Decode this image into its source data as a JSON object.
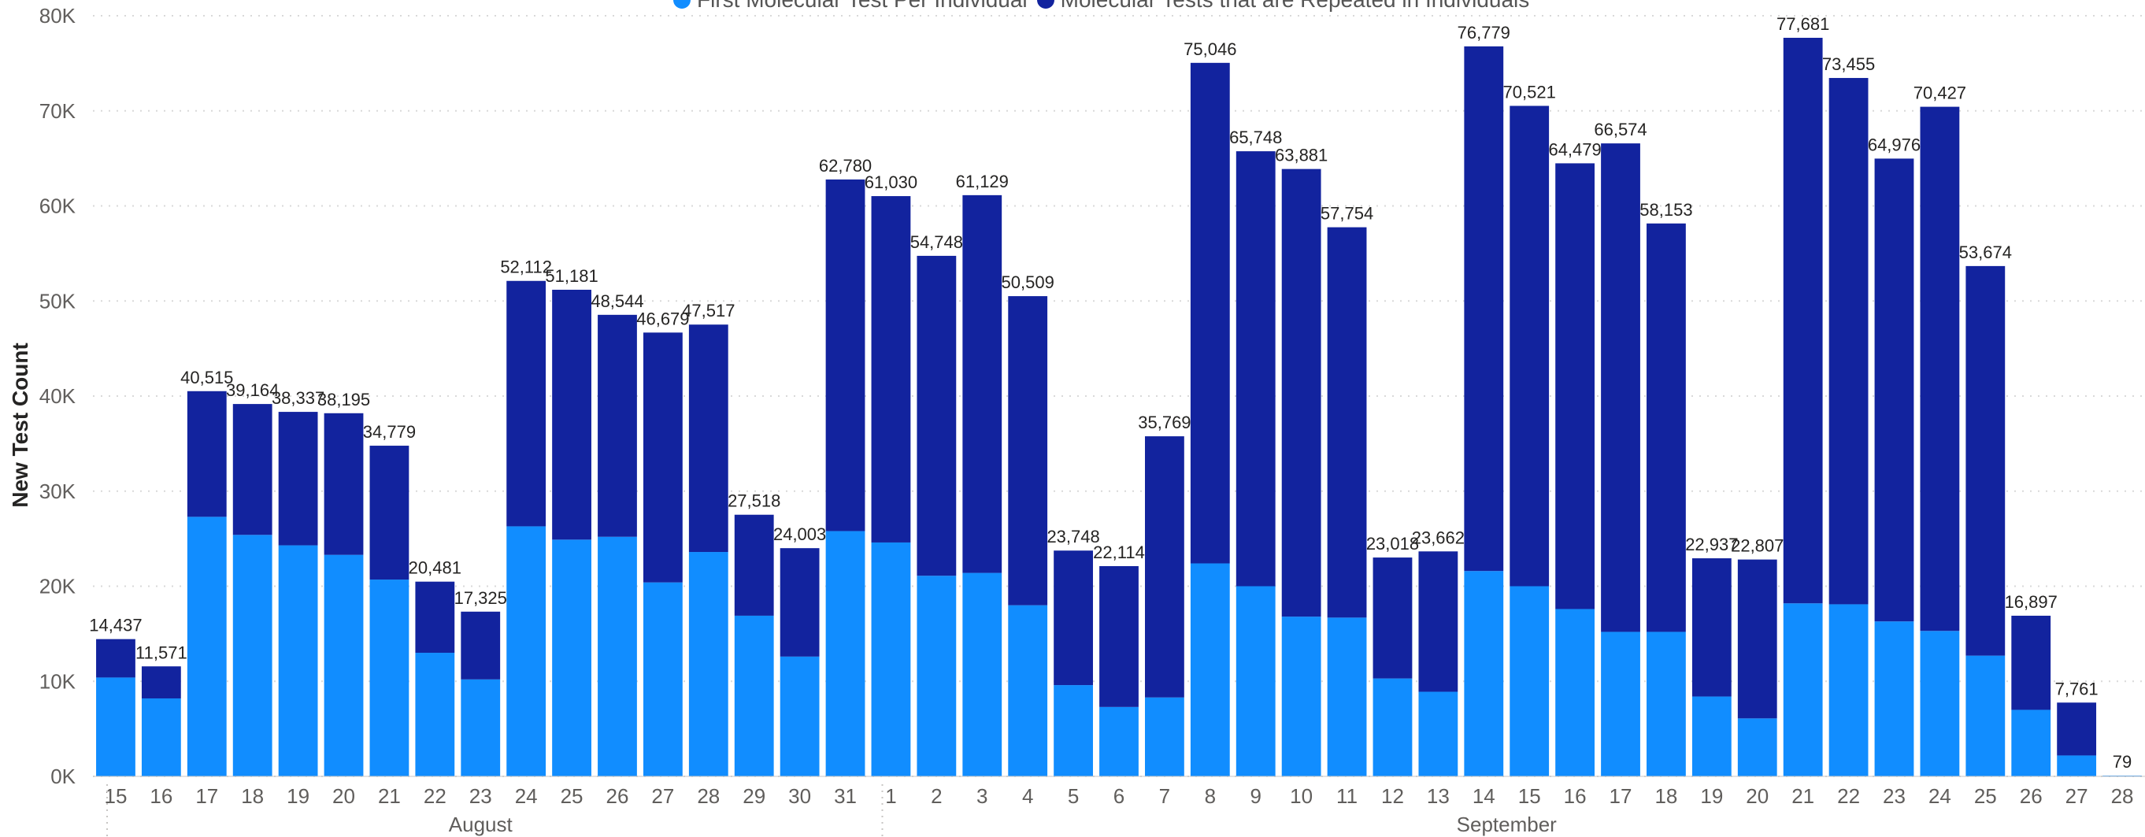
{
  "chart_data": {
    "type": "bar",
    "stacked": true,
    "ylabel": "New Test Count",
    "xlabel": "",
    "ylim": [
      0,
      80000
    ],
    "yticks": [
      "0K",
      "10K",
      "20K",
      "30K",
      "40K",
      "50K",
      "60K",
      "70K",
      "80K"
    ],
    "grid": true,
    "legend_position": "top",
    "colors": {
      "first": "#118DFF",
      "repeated": "#12239E"
    },
    "month_groups": [
      {
        "label": "August",
        "count": 17
      },
      {
        "label": "September",
        "count": 28
      }
    ],
    "categories": [
      "15",
      "16",
      "17",
      "18",
      "19",
      "20",
      "21",
      "22",
      "23",
      "24",
      "25",
      "26",
      "27",
      "28",
      "29",
      "30",
      "31",
      "1",
      "2",
      "3",
      "4",
      "5",
      "6",
      "7",
      "8",
      "9",
      "10",
      "11",
      "12",
      "13",
      "14",
      "15",
      "16",
      "17",
      "18",
      "19",
      "20",
      "21",
      "22",
      "23",
      "24",
      "25",
      "26",
      "27",
      "28"
    ],
    "series": [
      {
        "name": "First Molecular Test Per Individual",
        "values": [
          10400,
          8200,
          27300,
          25400,
          24300,
          23300,
          20700,
          13000,
          10200,
          26300,
          24900,
          25200,
          20400,
          23600,
          16900,
          12600,
          25800,
          24600,
          21100,
          21400,
          18000,
          9600,
          7300,
          8300,
          22400,
          20000,
          16800,
          16700,
          10300,
          8900,
          21600,
          20000,
          17600,
          15200,
          15200,
          8400,
          6100,
          18200,
          18100,
          16300,
          15300,
          12700,
          7000,
          2200,
          79
        ]
      },
      {
        "name": "Molecular Tests that are Repeated in Individuals",
        "values": [
          4037,
          3371,
          13215,
          13764,
          14037,
          14895,
          14079,
          7481,
          7125,
          25812,
          26281,
          23344,
          26279,
          23917,
          10618,
          11403,
          36980,
          36430,
          33648,
          39729,
          32509,
          14148,
          14814,
          27469,
          52646,
          45748,
          47081,
          41054,
          12718,
          14762,
          55179,
          50521,
          46879,
          51374,
          42953,
          14537,
          16707,
          59481,
          55355,
          48676,
          55127,
          40974,
          9897,
          5561,
          0
        ]
      }
    ],
    "totals": [
      14437,
      11571,
      40515,
      39164,
      38337,
      38195,
      34779,
      20481,
      17325,
      52112,
      51181,
      48544,
      46679,
      47517,
      27518,
      24003,
      62780,
      61030,
      54748,
      61129,
      50509,
      23748,
      22114,
      35769,
      75046,
      65748,
      63881,
      57754,
      23018,
      23662,
      76779,
      70521,
      64479,
      66574,
      58153,
      22937,
      22807,
      77681,
      73455,
      64976,
      70427,
      53674,
      16897,
      7761,
      79
    ],
    "total_labels": [
      "14,437",
      "11,571",
      "40,515",
      "39,164",
      "38,337",
      "38,195",
      "34,779",
      "20,481",
      "17,325",
      "52,112",
      "51,181",
      "48,544",
      "46,679",
      "47,517",
      "27,518",
      "24,003",
      "62,780",
      "61,030",
      "54,748",
      "61,129",
      "50,509",
      "23,748",
      "22,114",
      "35,769",
      "75,046",
      "65,748",
      "63,881",
      "57,754",
      "23,018",
      "23,662",
      "76,779",
      "70,521",
      "64,479",
      "66,574",
      "58,153",
      "22,937",
      "22,807",
      "77,681",
      "73,455",
      "64,976",
      "70,427",
      "53,674",
      "16,897",
      "7,761",
      "79"
    ]
  }
}
